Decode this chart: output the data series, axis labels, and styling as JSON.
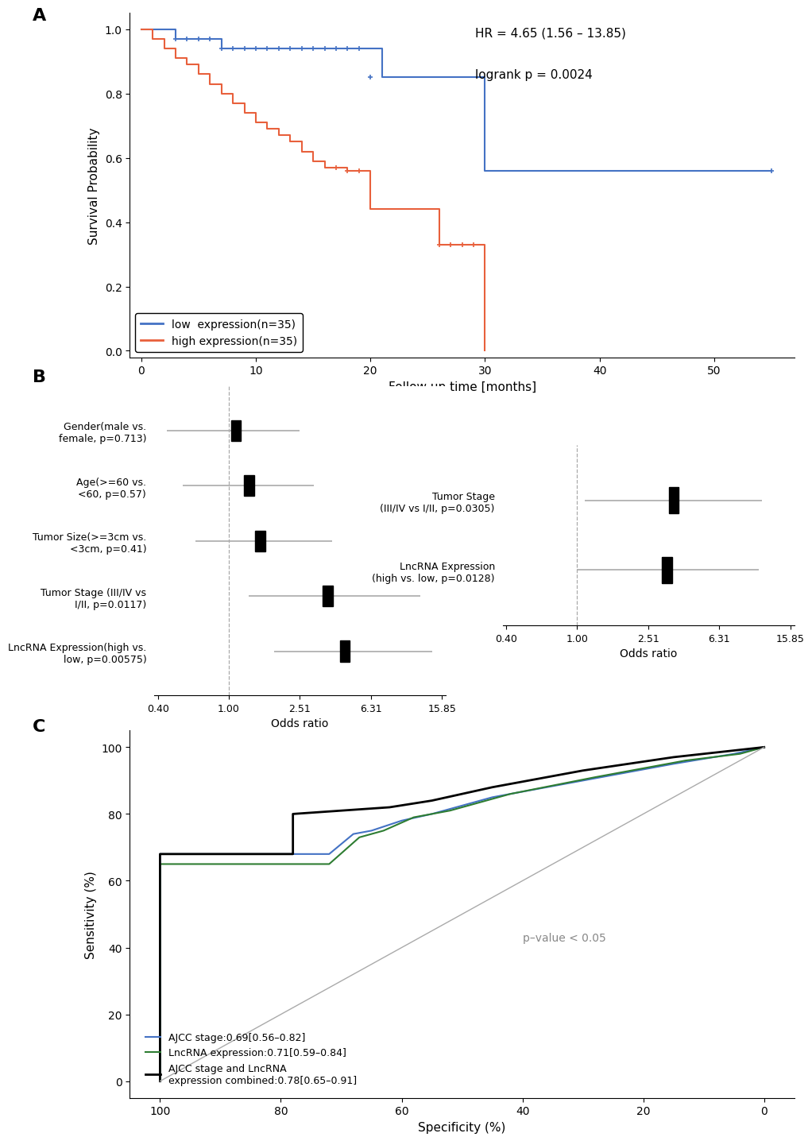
{
  "panel_A": {
    "low_expr": {
      "times": [
        0,
        2,
        3,
        4,
        5,
        6,
        7,
        8,
        9,
        10,
        11,
        12,
        13,
        14,
        15,
        16,
        17,
        18,
        19,
        20,
        21,
        30,
        55
      ],
      "surv": [
        1.0,
        1.0,
        0.97,
        0.97,
        0.97,
        0.97,
        0.94,
        0.94,
        0.94,
        0.94,
        0.94,
        0.94,
        0.94,
        0.94,
        0.94,
        0.94,
        0.94,
        0.94,
        0.94,
        0.94,
        0.85,
        0.56,
        0.56
      ],
      "censors_x": [
        3,
        4,
        5,
        6,
        7,
        8,
        9,
        10,
        11,
        12,
        13,
        14,
        15,
        16,
        17,
        18,
        19,
        20,
        55
      ],
      "censors_y": [
        0.97,
        0.97,
        0.97,
        0.97,
        0.94,
        0.94,
        0.94,
        0.94,
        0.94,
        0.94,
        0.94,
        0.94,
        0.94,
        0.94,
        0.94,
        0.94,
        0.94,
        0.85,
        0.56
      ],
      "color": "#4472C4",
      "label": "low  expression(n=35)"
    },
    "high_expr": {
      "times": [
        0,
        1,
        2,
        3,
        4,
        5,
        6,
        7,
        8,
        9,
        10,
        11,
        12,
        13,
        14,
        15,
        16,
        17,
        18,
        19,
        20,
        21,
        22,
        23,
        24,
        25,
        26,
        27,
        28,
        29,
        30
      ],
      "surv": [
        1.0,
        0.97,
        0.94,
        0.91,
        0.89,
        0.86,
        0.83,
        0.8,
        0.77,
        0.74,
        0.71,
        0.69,
        0.67,
        0.65,
        0.62,
        0.59,
        0.57,
        0.57,
        0.56,
        0.56,
        0.44,
        0.44,
        0.44,
        0.44,
        0.44,
        0.44,
        0.33,
        0.33,
        0.33,
        0.33,
        0.0
      ],
      "censors_x": [
        17,
        18,
        19,
        26,
        27,
        28,
        29
      ],
      "censors_y": [
        0.57,
        0.56,
        0.56,
        0.33,
        0.33,
        0.33,
        0.33
      ],
      "color": "#E8603C",
      "label": "high expression(n=35)"
    },
    "hr_text": "HR = 4.65 (1.56 – 13.85)",
    "logrank_text": "logrank p = 0.0024",
    "xlabel": "Follow up time [months]",
    "ylabel": "Survival Probability",
    "xlim": [
      -1,
      57
    ],
    "ylim": [
      -0.02,
      1.05
    ],
    "xticks": [
      0,
      10,
      20,
      30,
      40,
      50
    ],
    "yticks": [
      0.0,
      0.2,
      0.4,
      0.6,
      0.8,
      1.0
    ]
  },
  "panel_B": {
    "univariate": {
      "labels": [
        "Gender(male vs.\nfemale, p=0.713)",
        "Age(>=60 vs.\n<60, p=0.57)",
        "Tumor Size(>=3cm vs.\n<3cm, p=0.41)",
        "Tumor Stage (III/IV vs\nI/II, p=0.0117)",
        "LncRNA Expression(high vs.\nlow, p=0.00575)"
      ],
      "or": [
        1.1,
        1.3,
        1.5,
        3.6,
        4.5
      ],
      "ci_lo": [
        0.45,
        0.55,
        0.65,
        1.3,
        1.8
      ],
      "ci_hi": [
        2.5,
        3.0,
        3.8,
        12.0,
        14.0
      ],
      "xscale_ticks": [
        0.4,
        1.0,
        2.51,
        6.31,
        15.85
      ],
      "xscale_labels": [
        "0.40",
        "1.00",
        "2.51",
        "6.31",
        "15.85"
      ],
      "xlabel": "Odds ratio"
    },
    "multivariate": {
      "labels": [
        "Tumor Stage\n(III/IV vs I/II, p=0.0305)",
        "LncRNA Expression\n(high vs. low, p=0.0128)"
      ],
      "or": [
        3.5,
        3.2
      ],
      "ci_lo": [
        1.1,
        1.0
      ],
      "ci_hi": [
        11.0,
        10.5
      ],
      "xscale_ticks": [
        0.4,
        1.0,
        2.51,
        6.31,
        15.85
      ],
      "xscale_labels": [
        "0.40",
        "1.00",
        "2.51",
        "6.31",
        "15.85"
      ],
      "xlabel": "Odds ratio"
    },
    "vline_x": 1.0,
    "box_color": "black",
    "line_color": "#AAAAAA"
  },
  "panel_C": {
    "ajcc": {
      "spec": [
        100,
        100,
        72,
        68,
        65,
        60,
        55,
        45,
        30,
        15,
        5,
        0
      ],
      "sens": [
        0,
        68,
        68,
        74,
        75,
        78,
        80,
        85,
        90,
        95,
        98,
        100
      ],
      "color": "#4472C4",
      "label": "AJCC stage:0.69[0.56–0.82]",
      "lw": 1.5
    },
    "lncrna": {
      "spec": [
        100,
        100,
        72,
        67,
        63,
        58,
        52,
        42,
        28,
        13,
        4,
        0
      ],
      "sens": [
        0,
        65,
        65,
        73,
        75,
        79,
        81,
        86,
        91,
        96,
        98,
        100
      ],
      "color": "#2E7D32",
      "label": "LncRNA expression:0.71[0.59–0.84]",
      "lw": 1.5
    },
    "combined": {
      "spec": [
        100,
        100,
        78,
        78,
        70,
        62,
        55,
        45,
        30,
        15,
        5,
        0
      ],
      "sens": [
        0,
        68,
        68,
        80,
        81,
        82,
        84,
        88,
        93,
        97,
        99,
        100
      ],
      "color": "black",
      "label": "AJCC stage and LncRNA\nexpression combined:0.78[0.65–0.91]",
      "lw": 2.0
    },
    "diagonal_color": "#AAAAAA",
    "pvalue_text": "p–value < 0.05",
    "xlabel": "Specificity (%)",
    "ylabel": "Sensitivity (%)",
    "xticks": [
      100,
      80,
      60,
      40,
      20,
      0
    ],
    "yticks": [
      0,
      20,
      40,
      60,
      80,
      100
    ]
  }
}
